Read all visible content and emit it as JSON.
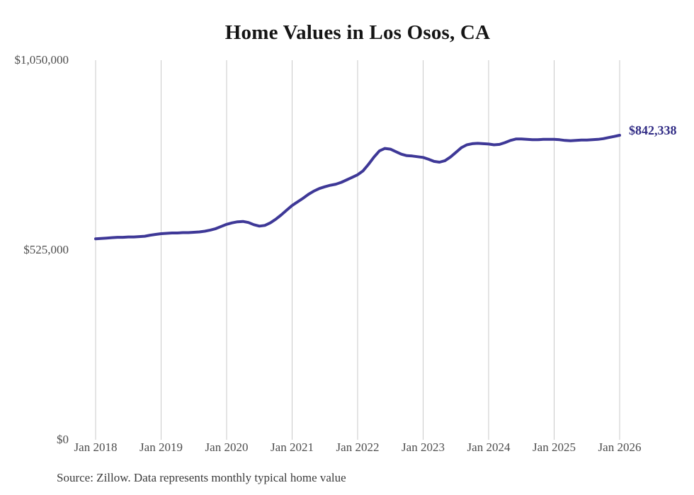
{
  "title": "Home Values in Los Osos, CA",
  "source_note": "Source: Zillow. Data represents monthly typical home value",
  "annotation": {
    "text": "$842,338",
    "value": 842338
  },
  "colors": {
    "line": "#3e3897",
    "annotation_text": "#312c85",
    "grid": "#c9c9c9",
    "title_text": "#151515",
    "axis_text": "#4d4d4d",
    "source_text": "#3b3b3b",
    "background": "#ffffff"
  },
  "chart_data": {
    "type": "line",
    "title": "Home Values in Los Osos, CA",
    "xlabel": "",
    "ylabel": "",
    "frequency": "monthly",
    "x_start": "Jan 2018",
    "x_end": "Jan 2026",
    "x_tick_labels": [
      "Jan 2018",
      "Jan 2019",
      "Jan 2020",
      "Jan 2021",
      "Jan 2022",
      "Jan 2023",
      "Jan 2024",
      "Jan 2025",
      "Jan 2026"
    ],
    "y_ticks": [
      {
        "label": "$0",
        "value": 0
      },
      {
        "label": "$525,000",
        "value": 525000
      },
      {
        "label": "$1,050,000",
        "value": 1050000
      }
    ],
    "ylim": [
      0,
      1050000
    ],
    "grid": "vertical-only",
    "legend": "none",
    "final_value": 842338,
    "series": [
      {
        "name": "Typical home value",
        "values": [
          556000,
          557000,
          558000,
          559000,
          560000,
          560000,
          561000,
          561000,
          562000,
          563000,
          566000,
          568000,
          570000,
          571000,
          572000,
          572000,
          573000,
          573000,
          574000,
          575000,
          577000,
          580000,
          584000,
          590000,
          596000,
          600000,
          603000,
          604000,
          601000,
          595000,
          591000,
          593000,
          600000,
          610000,
          622000,
          635000,
          648000,
          658000,
          668000,
          679000,
          688000,
          695000,
          700000,
          704000,
          707000,
          712000,
          719000,
          726000,
          733000,
          744000,
          762000,
          782000,
          799000,
          806000,
          804000,
          797000,
          790000,
          786000,
          785000,
          783000,
          781000,
          776000,
          770000,
          768000,
          772000,
          782000,
          795000,
          808000,
          816000,
          819000,
          820000,
          819000,
          818000,
          816000,
          817000,
          822000,
          828000,
          832000,
          832000,
          831000,
          830000,
          830000,
          831000,
          831000,
          831000,
          830000,
          828000,
          827000,
          828000,
          829000,
          829000,
          830000,
          831000,
          833000,
          836000,
          839000,
          842338
        ]
      }
    ]
  }
}
